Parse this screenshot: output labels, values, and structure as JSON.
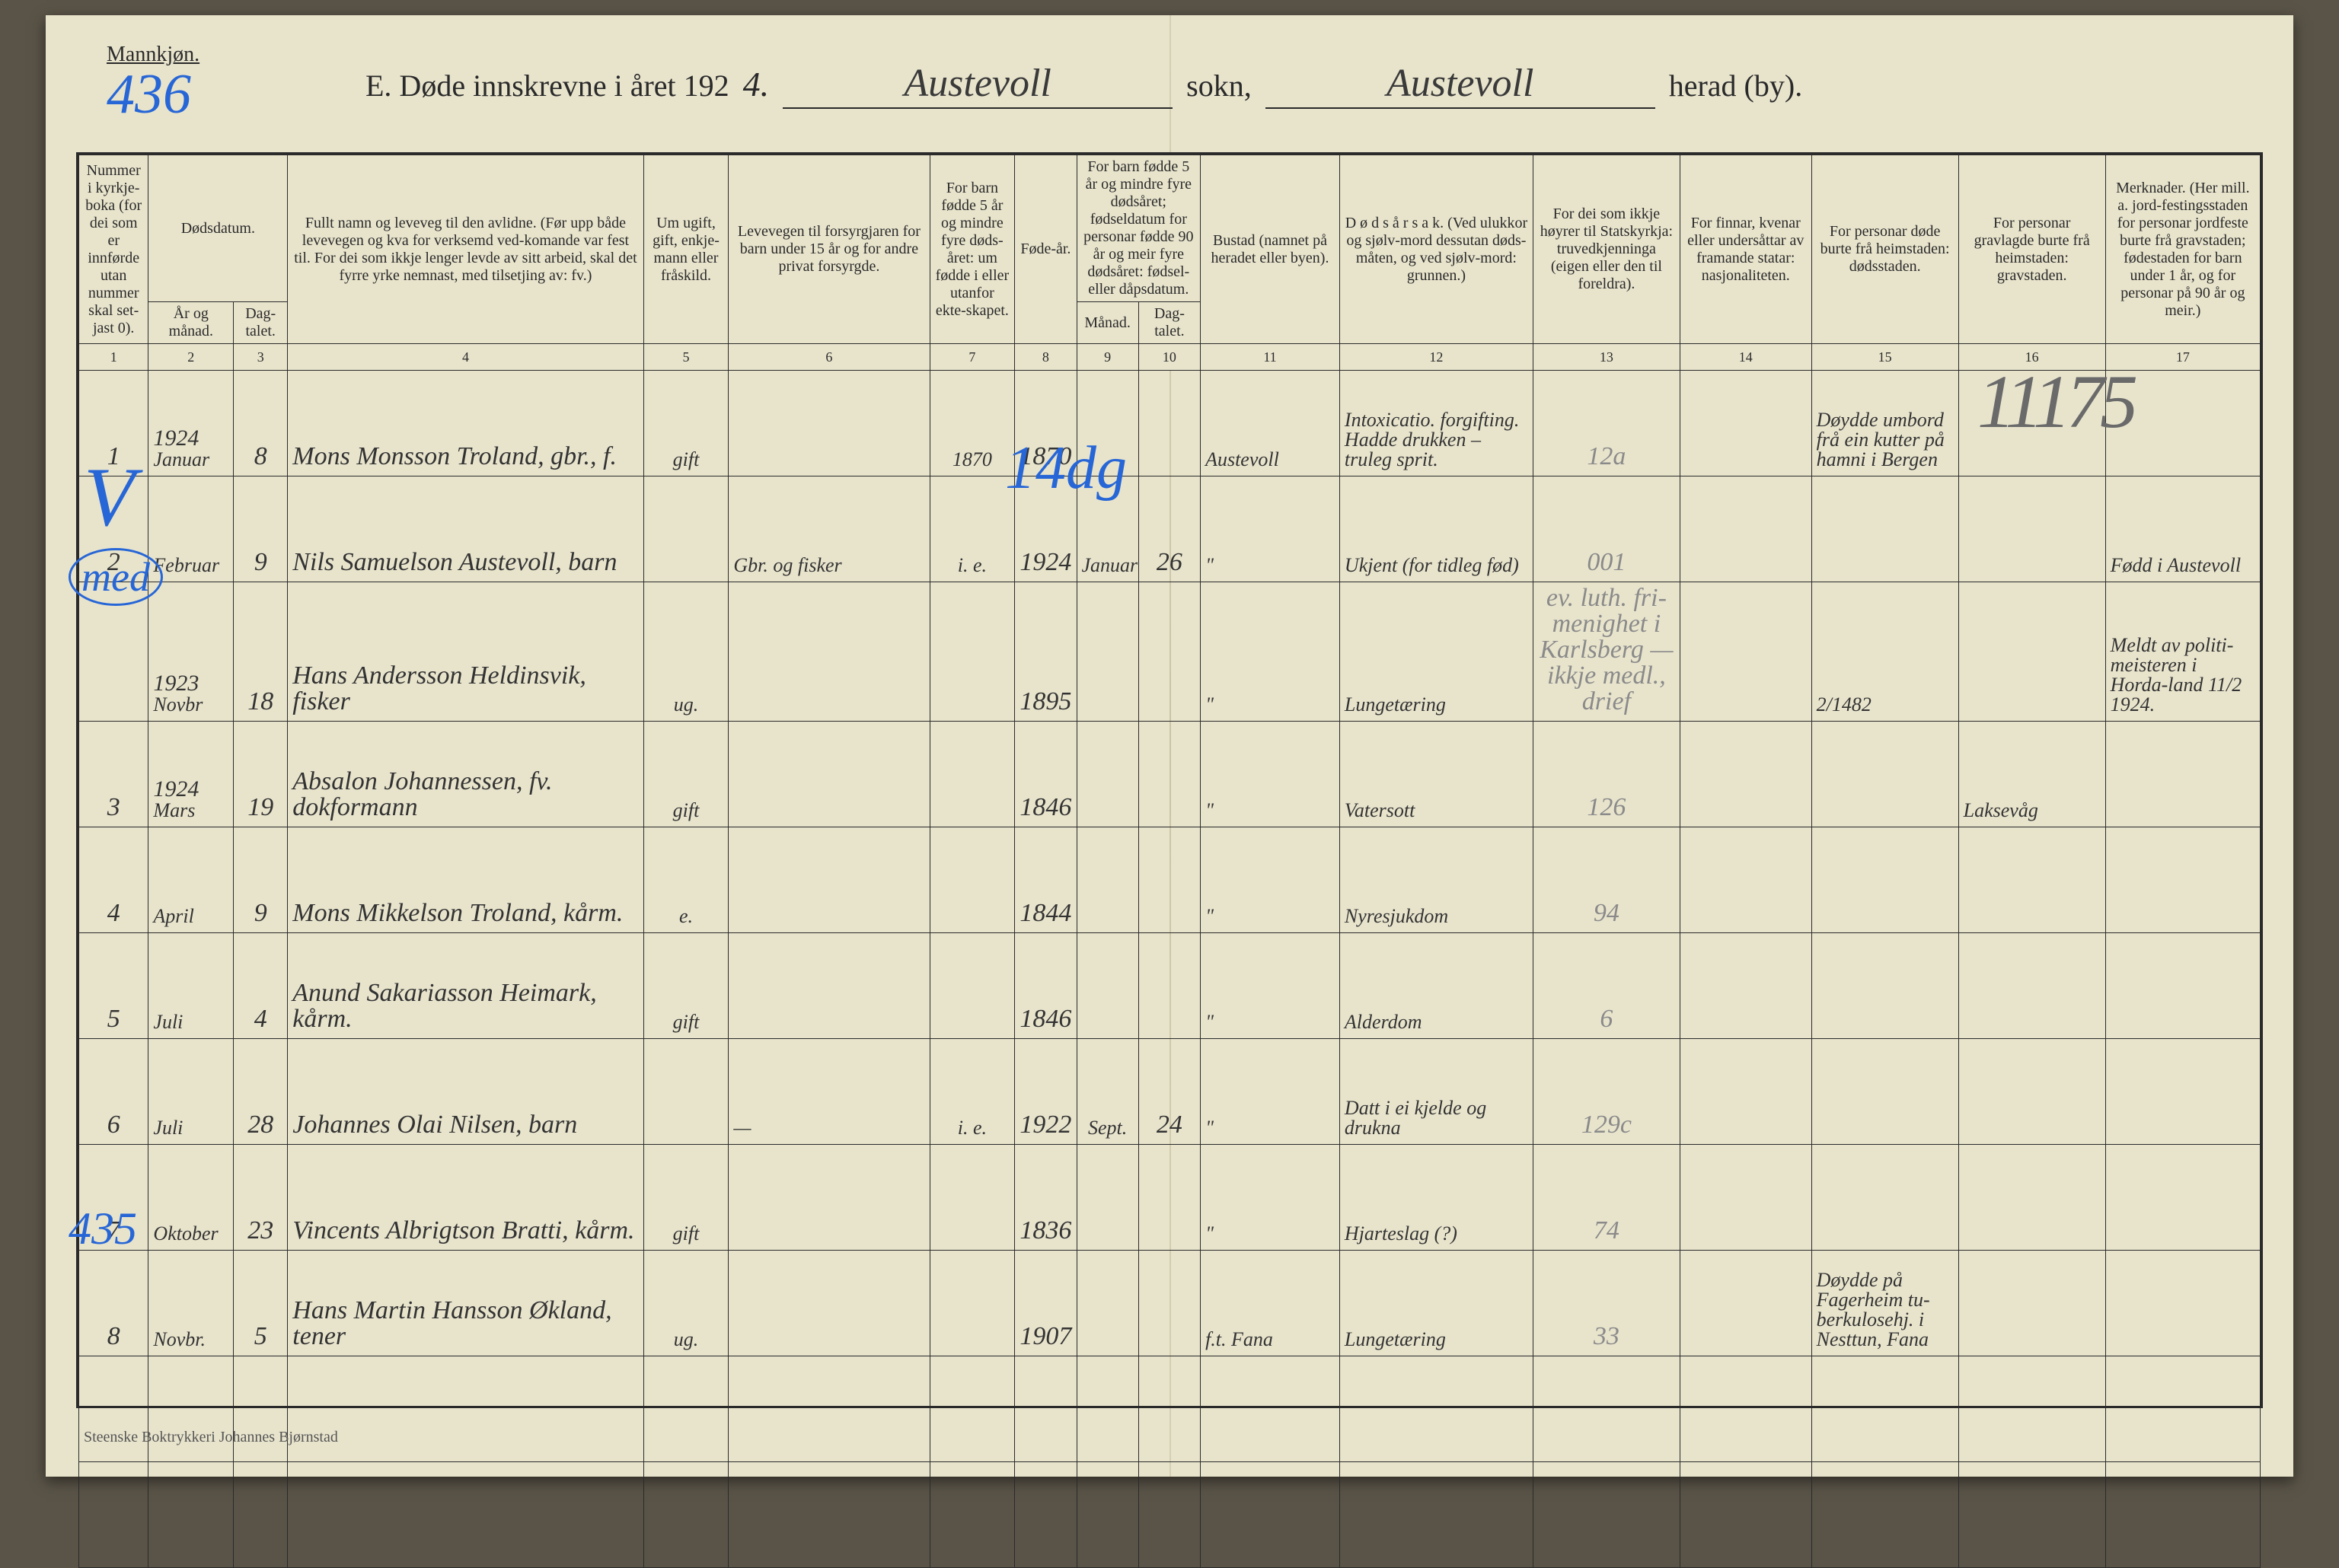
{
  "page": {
    "gender_label": "Mannkjøn.",
    "page_code": "436",
    "title_prefix": "E.  Døde innskrevne i året 192",
    "year_suffix": "4.",
    "sokn_label": "sokn,",
    "herad_label": "herad (by).",
    "sokn_value": "Austevoll",
    "herad_value": "Austevoll",
    "printer": "Steenske Boktrykkeri Johannes Bjørnstad"
  },
  "overlays": {
    "left_check": "V",
    "mid_14dg": "14dg",
    "left_435": "435",
    "tall_11175": "11175",
    "med_circle": "med"
  },
  "columns": {
    "1": "Nummer i kyrkje-boka (for dei som er innførde utan nummer skal set-jast 0).",
    "2_group": "Dødsdatum.",
    "2a": "År og månad.",
    "2b": "Dag-talet.",
    "4": "Fullt namn og leveveg til den avlidne.\n(Før upp både levevegen og kva for verksemd ved-komande var fest til. For dei som ikkje lenger levde av sitt arbeid, skal det fyrre yrke nemnast, med tilsetjing av: fv.)",
    "5": "Um ugift, gift, enkje-mann eller fråskild.",
    "6": "Levevegen til forsyrgjaren for barn under 15 år og for andre privat forsyrgde.",
    "7": "For barn fødde 5 år og mindre fyre døds-året: um fødde i eller utanfor ekte-skapet.",
    "8": "Føde-år.",
    "9_group": "For barn fødde 5 år og mindre fyre dødsåret; fødseldatum for personar fødde 90 år og meir fyre dødsåret: fødsel- eller dåpsdatum.",
    "9a": "Månad.",
    "9b": "Dag-talet.",
    "11": "Bustad\n(namnet på\nheradet eller byen).",
    "12": "D ø d s å r s a k.\n(Ved ulukkor og sjølv-mord dessutan døds-måten, og ved sjølv-mord: grunnen.)",
    "13": "For dei som ikkje høyrer til Statskyrkja: truvedkjenninga (eigen eller den til foreldra).",
    "14": "For finnar, kvenar eller undersåttar av framande statar: nasjonaliteten.",
    "15": "For personar døde burte frå heimstaden: dødsstaden.",
    "16": "For personar gravlagde burte frå heimstaden: gravstaden.",
    "17": "Merknader.\n(Her mill. a. jord-festingsstaden for personar jordfeste burte frå gravstaden; fødestaden for barn under 1 år, og for personar på 90 år og meir.)"
  },
  "colnums": [
    "1",
    "2",
    "3",
    "4",
    "5",
    "6",
    "7",
    "8",
    "9",
    "10",
    "11",
    "12",
    "13",
    "14",
    "15",
    "16",
    "17"
  ],
  "rows": [
    {
      "num": "1",
      "year": "1924",
      "month": "Januar",
      "day": "8",
      "name": "Mons Monsson Troland, gbr., f.",
      "civil": "gift",
      "guardian": "",
      "col7": "1870",
      "birthyear": "1870",
      "m9": "",
      "d10": "",
      "residence": "Austevoll",
      "cause": "Intoxicatio. forgifting. Hadde drukken – truleg sprit.",
      "c13": "12a",
      "c14": "",
      "c15": "Døydde umbord frå ein kutter på hamni i Bergen",
      "c16": "",
      "c17": ""
    },
    {
      "num": "2",
      "year": "",
      "month": "Februar",
      "day": "9",
      "name": "Nils Samuelson Austevoll, barn",
      "civil": "",
      "guardian": "Gbr. og fisker",
      "col7": "i. e.",
      "birthyear": "1924",
      "m9": "Januar",
      "d10": "26",
      "residence": "\"",
      "cause": "Ukjent (for tidleg fød)",
      "c13": "001",
      "c14": "",
      "c15": "",
      "c16": "",
      "c17": "Fødd i Austevoll"
    },
    {
      "num": "",
      "year": "1923",
      "month": "Novbr",
      "day": "18",
      "name": "Hans Andersson Heldinsvik, fisker",
      "civil": "ug.",
      "guardian": "",
      "col7": "",
      "birthyear": "1895",
      "m9": "",
      "d10": "",
      "residence": "\"",
      "cause": "Lungetæring",
      "c13": "ev. luth. fri-menighet i Karlsberg — ikkje medl., drief",
      "c14": "",
      "c15": "2/1482",
      "c16": "",
      "c17": "Meldt av politi-meisteren i Horda-land 11/2 1924."
    },
    {
      "num": "3",
      "year": "1924",
      "month": "Mars",
      "day": "19",
      "name": "Absalon Johannessen, fv. dokformann",
      "civil": "gift",
      "guardian": "",
      "col7": "",
      "birthyear": "1846",
      "m9": "",
      "d10": "",
      "residence": "\"",
      "cause": "Vatersott",
      "c13": "126",
      "c14": "",
      "c15": "",
      "c16": "Laksevåg",
      "c17": ""
    },
    {
      "num": "4",
      "year": "",
      "month": "April",
      "day": "9",
      "name": "Mons Mikkelson Troland, kårm.",
      "civil": "e.",
      "guardian": "",
      "col7": "",
      "birthyear": "1844",
      "m9": "",
      "d10": "",
      "residence": "\"",
      "cause": "Nyresjukdom",
      "c13": "94",
      "c14": "",
      "c15": "",
      "c16": "",
      "c17": ""
    },
    {
      "num": "5",
      "year": "",
      "month": "Juli",
      "day": "4",
      "name": "Anund Sakariasson Heimark, kårm.",
      "civil": "gift",
      "guardian": "",
      "col7": "",
      "birthyear": "1846",
      "m9": "",
      "d10": "",
      "residence": "\"",
      "cause": "Alderdom",
      "c13": "6",
      "c14": "",
      "c15": "",
      "c16": "",
      "c17": ""
    },
    {
      "num": "6",
      "year": "",
      "month": "Juli",
      "day": "28",
      "name": "Johannes Olai Nilsen, barn",
      "civil": "",
      "guardian": "—",
      "col7": "i. e.",
      "birthyear": "1922",
      "m9": "Sept.",
      "d10": "24",
      "residence": "\"",
      "cause": "Datt i ei kjelde og drukna",
      "c13": "129c",
      "c14": "",
      "c15": "",
      "c16": "",
      "c17": ""
    },
    {
      "num": "7",
      "year": "",
      "month": "Oktober",
      "day": "23",
      "name": "Vincents Albrigtson Bratti, kårm.",
      "civil": "gift",
      "guardian": "",
      "col7": "",
      "birthyear": "1836",
      "m9": "",
      "d10": "",
      "residence": "\"",
      "cause": "Hjarteslag (?)",
      "c13": "74",
      "c14": "",
      "c15": "",
      "c16": "",
      "c17": ""
    },
    {
      "num": "8",
      "year": "",
      "month": "Novbr.",
      "day": "5",
      "name": "Hans Martin Hansson Økland, tener",
      "civil": "ug.",
      "guardian": "",
      "col7": "",
      "birthyear": "1907",
      "m9": "",
      "d10": "",
      "residence": "f.t. Fana",
      "cause": "Lungetæring",
      "c13": "33",
      "c14": "",
      "c15": "Døydde på Fagerheim tu-berkulosehj. i Nesttun, Fana",
      "c16": "",
      "c17": ""
    }
  ]
}
